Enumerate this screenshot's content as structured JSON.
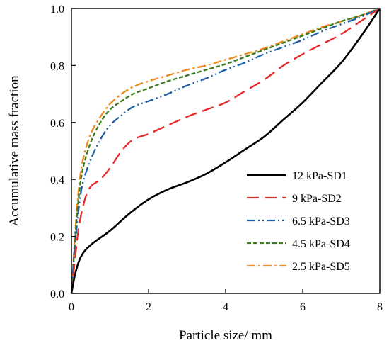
{
  "chart_data": {
    "type": "line",
    "title": "",
    "xlabel": "Particle size/ mm",
    "ylabel": "Accumulative mass fraction",
    "xlim": [
      0,
      8
    ],
    "ylim": [
      0,
      1.0
    ],
    "x_ticks": [
      "0",
      "2",
      "4",
      "6",
      "8"
    ],
    "y_ticks": [
      "0.0",
      "0.2",
      "0.4",
      "0.6",
      "0.8",
      "1.0"
    ],
    "grid": false,
    "legend_position": "bottom-right",
    "series": [
      {
        "name": "12 kPa-SD1",
        "color": "#000000",
        "dash": "solid",
        "points": [
          [
            0,
            0
          ],
          [
            0.1,
            0.07
          ],
          [
            0.25,
            0.13
          ],
          [
            0.5,
            0.17
          ],
          [
            1.0,
            0.22
          ],
          [
            1.5,
            0.28
          ],
          [
            2.0,
            0.33
          ],
          [
            2.5,
            0.365
          ],
          [
            3.0,
            0.39
          ],
          [
            3.5,
            0.42
          ],
          [
            4.0,
            0.46
          ],
          [
            4.5,
            0.505
          ],
          [
            5.0,
            0.55
          ],
          [
            5.5,
            0.61
          ],
          [
            6.0,
            0.67
          ],
          [
            6.5,
            0.74
          ],
          [
            7.0,
            0.81
          ],
          [
            7.5,
            0.9
          ],
          [
            8.0,
            1.0
          ]
        ]
      },
      {
        "name": "9 kPa-SD2",
        "color": "#e8292a",
        "dash": "long-dash",
        "points": [
          [
            0,
            0
          ],
          [
            0.1,
            0.13
          ],
          [
            0.2,
            0.24
          ],
          [
            0.35,
            0.33
          ],
          [
            0.5,
            0.375
          ],
          [
            0.75,
            0.4
          ],
          [
            1.0,
            0.44
          ],
          [
            1.3,
            0.5
          ],
          [
            1.6,
            0.54
          ],
          [
            2.0,
            0.56
          ],
          [
            2.5,
            0.59
          ],
          [
            3.0,
            0.62
          ],
          [
            3.5,
            0.645
          ],
          [
            4.0,
            0.67
          ],
          [
            4.5,
            0.71
          ],
          [
            5.0,
            0.75
          ],
          [
            5.5,
            0.8
          ],
          [
            6.0,
            0.84
          ],
          [
            6.5,
            0.875
          ],
          [
            7.0,
            0.91
          ],
          [
            7.5,
            0.955
          ],
          [
            8.0,
            1.0
          ]
        ]
      },
      {
        "name": "6.5 kPa-SD3",
        "color": "#1f5fa6",
        "dash": "dash-dot-dot",
        "points": [
          [
            0,
            0
          ],
          [
            0.1,
            0.18
          ],
          [
            0.2,
            0.31
          ],
          [
            0.3,
            0.39
          ],
          [
            0.5,
            0.47
          ],
          [
            0.75,
            0.54
          ],
          [
            1.0,
            0.59
          ],
          [
            1.3,
            0.625
          ],
          [
            1.6,
            0.655
          ],
          [
            2.0,
            0.675
          ],
          [
            2.5,
            0.7
          ],
          [
            3.0,
            0.73
          ],
          [
            3.5,
            0.755
          ],
          [
            4.0,
            0.785
          ],
          [
            4.5,
            0.81
          ],
          [
            5.0,
            0.84
          ],
          [
            5.5,
            0.865
          ],
          [
            6.0,
            0.89
          ],
          [
            6.5,
            0.92
          ],
          [
            7.0,
            0.945
          ],
          [
            7.5,
            0.97
          ],
          [
            8.0,
            1.0
          ]
        ]
      },
      {
        "name": "4.5 kPa-SD4",
        "color": "#3a7d1e",
        "dash": "short-dash",
        "points": [
          [
            0,
            0
          ],
          [
            0.1,
            0.2
          ],
          [
            0.2,
            0.35
          ],
          [
            0.3,
            0.44
          ],
          [
            0.5,
            0.53
          ],
          [
            0.75,
            0.6
          ],
          [
            1.0,
            0.645
          ],
          [
            1.3,
            0.675
          ],
          [
            1.6,
            0.7
          ],
          [
            2.0,
            0.72
          ],
          [
            2.5,
            0.745
          ],
          [
            3.0,
            0.765
          ],
          [
            3.5,
            0.785
          ],
          [
            4.0,
            0.805
          ],
          [
            4.5,
            0.83
          ],
          [
            5.0,
            0.855
          ],
          [
            5.5,
            0.88
          ],
          [
            6.0,
            0.905
          ],
          [
            6.5,
            0.93
          ],
          [
            7.0,
            0.955
          ],
          [
            7.5,
            0.975
          ],
          [
            8.0,
            1.0
          ]
        ]
      },
      {
        "name": "2.5 kPa-SD5",
        "color": "#f08a1c",
        "dash": "dash-dot",
        "points": [
          [
            0,
            0
          ],
          [
            0.1,
            0.22
          ],
          [
            0.2,
            0.38
          ],
          [
            0.3,
            0.47
          ],
          [
            0.5,
            0.56
          ],
          [
            0.75,
            0.62
          ],
          [
            1.0,
            0.665
          ],
          [
            1.3,
            0.7
          ],
          [
            1.6,
            0.725
          ],
          [
            2.0,
            0.745
          ],
          [
            2.5,
            0.765
          ],
          [
            3.0,
            0.785
          ],
          [
            3.5,
            0.8
          ],
          [
            4.0,
            0.82
          ],
          [
            4.5,
            0.84
          ],
          [
            5.0,
            0.86
          ],
          [
            5.5,
            0.885
          ],
          [
            6.0,
            0.91
          ],
          [
            6.5,
            0.935
          ],
          [
            7.0,
            0.955
          ],
          [
            7.5,
            0.975
          ],
          [
            8.0,
            1.0
          ]
        ]
      }
    ]
  }
}
